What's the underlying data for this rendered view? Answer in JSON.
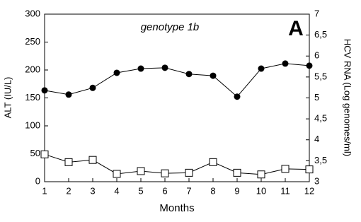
{
  "chart_data": {
    "type": "line",
    "annotations": [
      "genotype 1b",
      "A"
    ],
    "xlabel": "Months",
    "ylabel": "ALT (IU/L)",
    "y2label": "HCV RNA (Log genomes/ml)",
    "x": [
      1,
      2,
      3,
      4,
      5,
      6,
      7,
      8,
      9,
      10,
      11,
      12
    ],
    "xlim": [
      1,
      12
    ],
    "xticks": [
      1,
      2,
      3,
      4,
      5,
      6,
      7,
      8,
      9,
      10,
      11,
      12
    ],
    "ylim": [
      0,
      300
    ],
    "yticks": [
      0,
      50,
      100,
      150,
      200,
      250,
      300
    ],
    "y2lim": [
      3,
      7
    ],
    "y2ticks": [
      3,
      {
        "value": 3.5,
        "label": "3,5"
      },
      4,
      {
        "value": 4.5,
        "label": "4,5"
      },
      5,
      {
        "value": 5.5,
        "label": "5,5"
      },
      6,
      {
        "value": 6.5,
        "label": "6,5"
      },
      7
    ],
    "series": [
      {
        "marker": "circle",
        "color": "#000000",
        "axis": "y2",
        "values": [
          5.18,
          5.08,
          5.24,
          5.6,
          5.7,
          5.72,
          5.57,
          5.53,
          5.03,
          5.7,
          5.82,
          5.77
        ]
      },
      {
        "marker": "square",
        "color": "#000000",
        "values": [
          49,
          35,
          39,
          14,
          19,
          15,
          16,
          35,
          16,
          13,
          23,
          22
        ]
      }
    ]
  }
}
